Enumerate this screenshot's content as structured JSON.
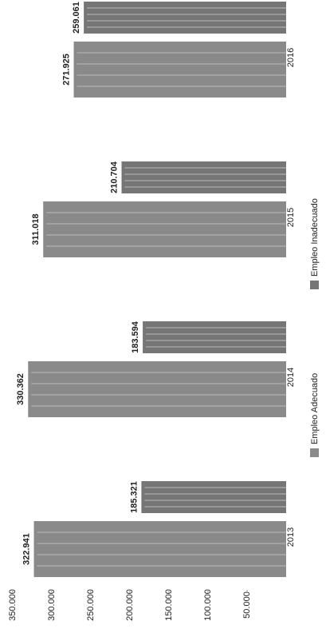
{
  "chart_data": {
    "type": "bar",
    "categories": [
      "2013",
      "2014",
      "2015",
      "2016"
    ],
    "series": [
      {
        "name": "Empleo Adecuado",
        "color": "#8a8a8a",
        "values": [
          322941,
          330362,
          311018,
          271925
        ],
        "value_labels": [
          "322.941",
          "330.362",
          "311.018",
          "271.925"
        ]
      },
      {
        "name": "Empleo Inadecuado",
        "color": "#767676",
        "values": [
          185321,
          183594,
          210704,
          259061
        ],
        "value_labels": [
          "185.321",
          "183.594",
          "210.704",
          "259.061"
        ]
      }
    ],
    "ylim": [
      0,
      350000
    ],
    "yticks": [
      {
        "value": 50000,
        "label": "50.000"
      },
      {
        "value": 100000,
        "label": "100.000"
      },
      {
        "value": 150000,
        "label": "150.000"
      },
      {
        "value": 200000,
        "label": "200.000"
      },
      {
        "value": 250000,
        "label": "250.000"
      },
      {
        "value": 300000,
        "label": "300.000"
      },
      {
        "value": 350000,
        "label": "350.000"
      }
    ]
  }
}
